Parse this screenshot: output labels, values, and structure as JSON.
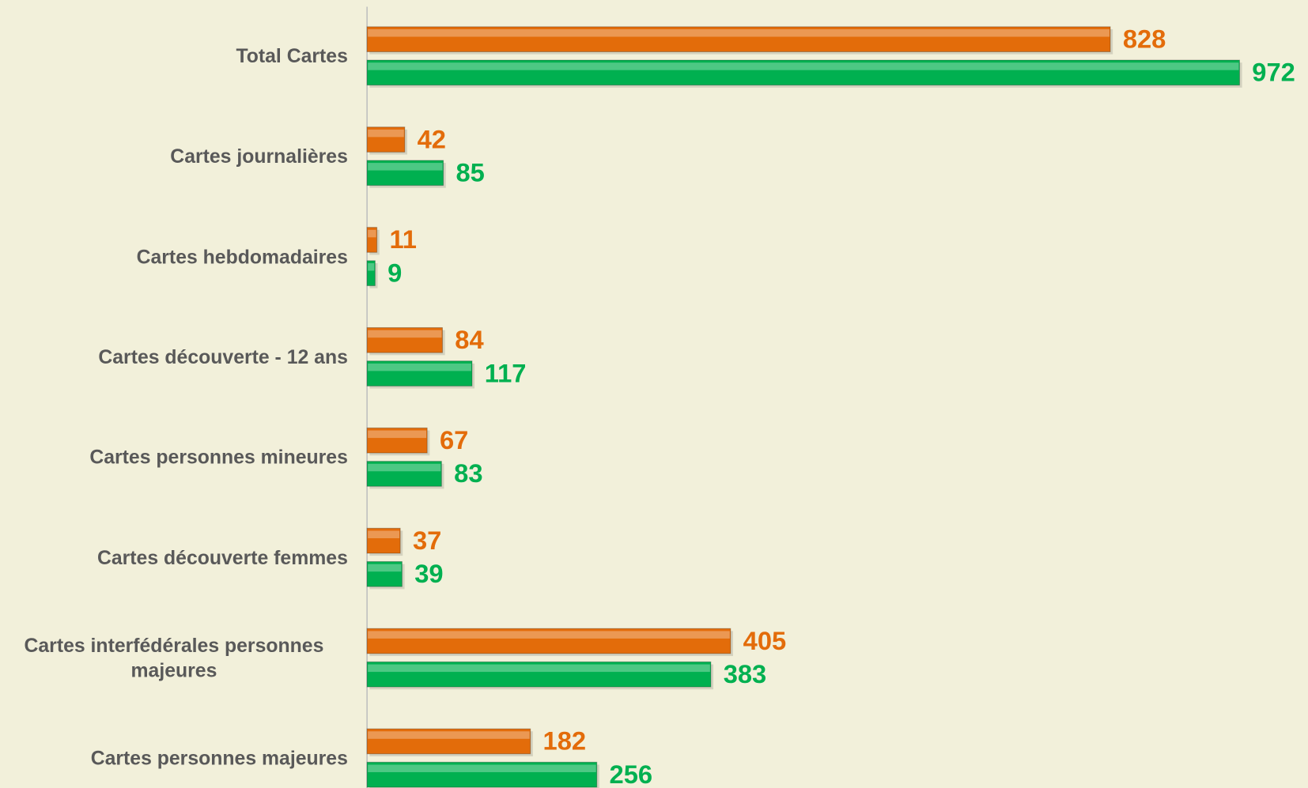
{
  "chart_data": {
    "type": "bar",
    "orientation": "horizontal",
    "categories": [
      "Total Cartes",
      "Cartes journalières",
      "Cartes hebdomadaires",
      "Cartes découverte - 12 ans",
      "Cartes personnes mineures",
      "Cartes découverte femmes",
      "Cartes interfédérales personnes majeures",
      "Cartes personnes majeures"
    ],
    "series": [
      {
        "color": "#e36c0a",
        "values": [
          828,
          42,
          11,
          84,
          67,
          37,
          405,
          182
        ]
      },
      {
        "color": "#00b050",
        "values": [
          972,
          85,
          9,
          117,
          83,
          39,
          383,
          256
        ]
      }
    ],
    "xlim": [
      0,
      1100
    ]
  }
}
